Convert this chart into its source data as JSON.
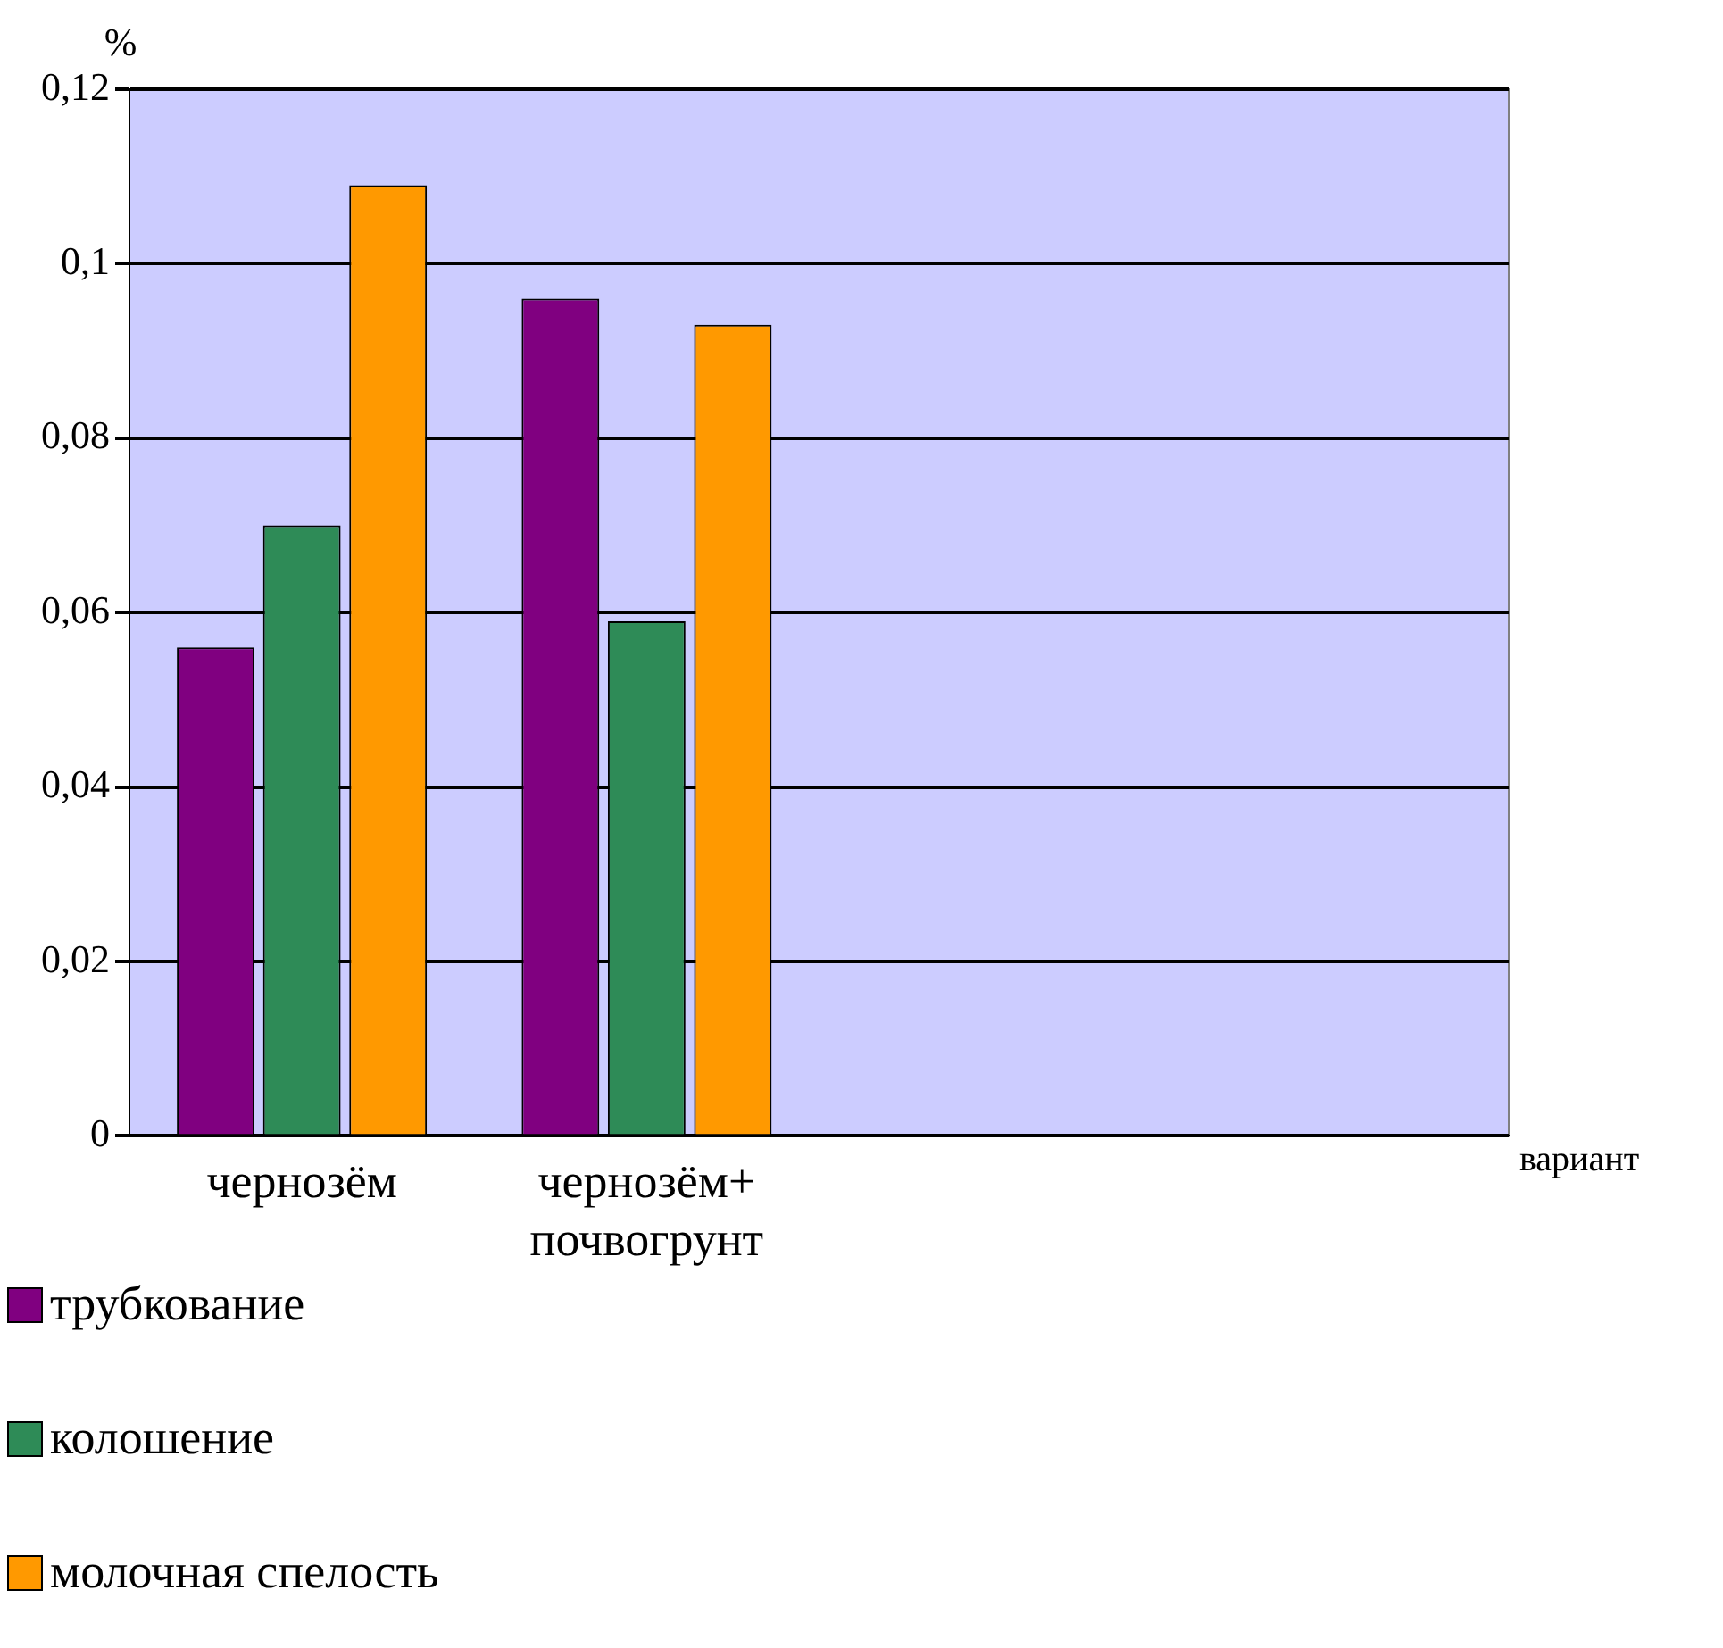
{
  "chart_data": {
    "type": "bar",
    "ylabel": "%",
    "xlabel": "вариант",
    "categories": [
      "чернозём",
      "чернозём+ почвогрунт",
      null,
      null
    ],
    "series": [
      {
        "name": "трубкование",
        "color": "#800080",
        "values": [
          0.056,
          0.096,
          null,
          null
        ]
      },
      {
        "name": "колошение",
        "color": "#2e8b57",
        "values": [
          0.07,
          0.059,
          null,
          null
        ]
      },
      {
        "name": "молочная спелость",
        "color": "#ff9900",
        "values": [
          0.109,
          0.093,
          null,
          null
        ]
      }
    ],
    "ylim": [
      0,
      0.12
    ],
    "yticks": [
      {
        "value": 0,
        "label": "0"
      },
      {
        "value": 0.02,
        "label": "0,02"
      },
      {
        "value": 0.04,
        "label": "0,04"
      },
      {
        "value": 0.06,
        "label": "0,06"
      },
      {
        "value": 0.08,
        "label": "0,08"
      },
      {
        "value": 0.1,
        "label": "0,1"
      },
      {
        "value": 0.12,
        "label": "0,12"
      }
    ],
    "grid": "y",
    "legend": "bottom left"
  }
}
